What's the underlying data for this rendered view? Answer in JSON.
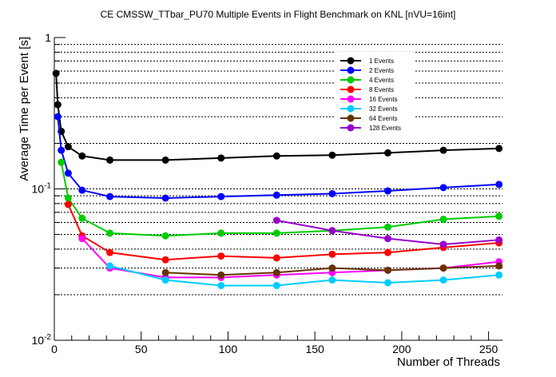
{
  "chart_data": {
    "type": "line",
    "title": "CE CMSSW_TTbar_PU70 Multiple Events in Flight Benchmark on KNL [nVU=16int]",
    "xlabel": "Number of Threads",
    "ylabel": "Average Time per Event [s]",
    "xlim": [
      0,
      258
    ],
    "ylim": [
      0.01,
      1
    ],
    "yscale": "log",
    "grid": "horizontal",
    "legend_position": "top-right",
    "x_ticks": [
      "0",
      "50",
      "100",
      "150",
      "200",
      "250"
    ],
    "y_ticks": [
      {
        "value": 0.01,
        "base": "10",
        "exp": "-2"
      },
      {
        "value": 0.1,
        "base": "10",
        "exp": "-1"
      },
      {
        "value": 1,
        "base": "1",
        "exp": ""
      }
    ],
    "series": [
      {
        "name": "1 Events",
        "color": "#000000",
        "x": [
          1,
          2,
          4,
          8,
          16,
          32,
          64,
          96,
          128,
          160,
          192,
          224,
          256
        ],
        "y": [
          0.58,
          0.36,
          0.24,
          0.19,
          0.165,
          0.155,
          0.155,
          0.16,
          0.165,
          0.167,
          0.173,
          0.18,
          0.185
        ]
      },
      {
        "name": "2 Events",
        "color": "#0000ff",
        "x": [
          2,
          4,
          8,
          16,
          32,
          64,
          96,
          128,
          160,
          192,
          224,
          256
        ],
        "y": [
          0.3,
          0.18,
          0.127,
          0.098,
          0.089,
          0.087,
          0.089,
          0.091,
          0.093,
          0.097,
          0.102,
          0.107
        ]
      },
      {
        "name": "4 Events",
        "color": "#00cc00",
        "x": [
          4,
          8,
          16,
          32,
          64,
          96,
          128,
          160,
          192,
          224,
          256
        ],
        "y": [
          0.15,
          0.087,
          0.064,
          0.051,
          0.049,
          0.051,
          0.051,
          0.053,
          0.056,
          0.063,
          0.066
        ]
      },
      {
        "name": "8 Events",
        "color": "#ff0000",
        "x": [
          8,
          16,
          32,
          64,
          96,
          128,
          160,
          192,
          224,
          256
        ],
        "y": [
          0.079,
          0.049,
          0.038,
          0.034,
          0.036,
          0.035,
          0.037,
          0.038,
          0.041,
          0.044
        ]
      },
      {
        "name": "16 Events",
        "color": "#ff00ff",
        "x": [
          16,
          32,
          64,
          96,
          128,
          160,
          192,
          224,
          256
        ],
        "y": [
          0.047,
          0.03,
          0.026,
          0.026,
          0.027,
          0.028,
          0.029,
          0.03,
          0.033
        ]
      },
      {
        "name": "32 Events",
        "color": "#00ccff",
        "x": [
          32,
          64,
          96,
          128,
          160,
          192,
          224,
          256
        ],
        "y": [
          0.031,
          0.025,
          0.023,
          0.023,
          0.025,
          0.024,
          0.025,
          0.027
        ]
      },
      {
        "name": "64 Events",
        "color": "#663300",
        "x": [
          64,
          96,
          128,
          160,
          192,
          224,
          256
        ],
        "y": [
          0.028,
          0.027,
          0.028,
          0.03,
          0.029,
          0.03,
          0.031
        ]
      },
      {
        "name": "128 Events",
        "color": "#9900cc",
        "x": [
          128,
          160,
          192,
          224,
          256
        ],
        "y": [
          0.062,
          0.053,
          0.047,
          0.043,
          0.046
        ]
      }
    ]
  }
}
